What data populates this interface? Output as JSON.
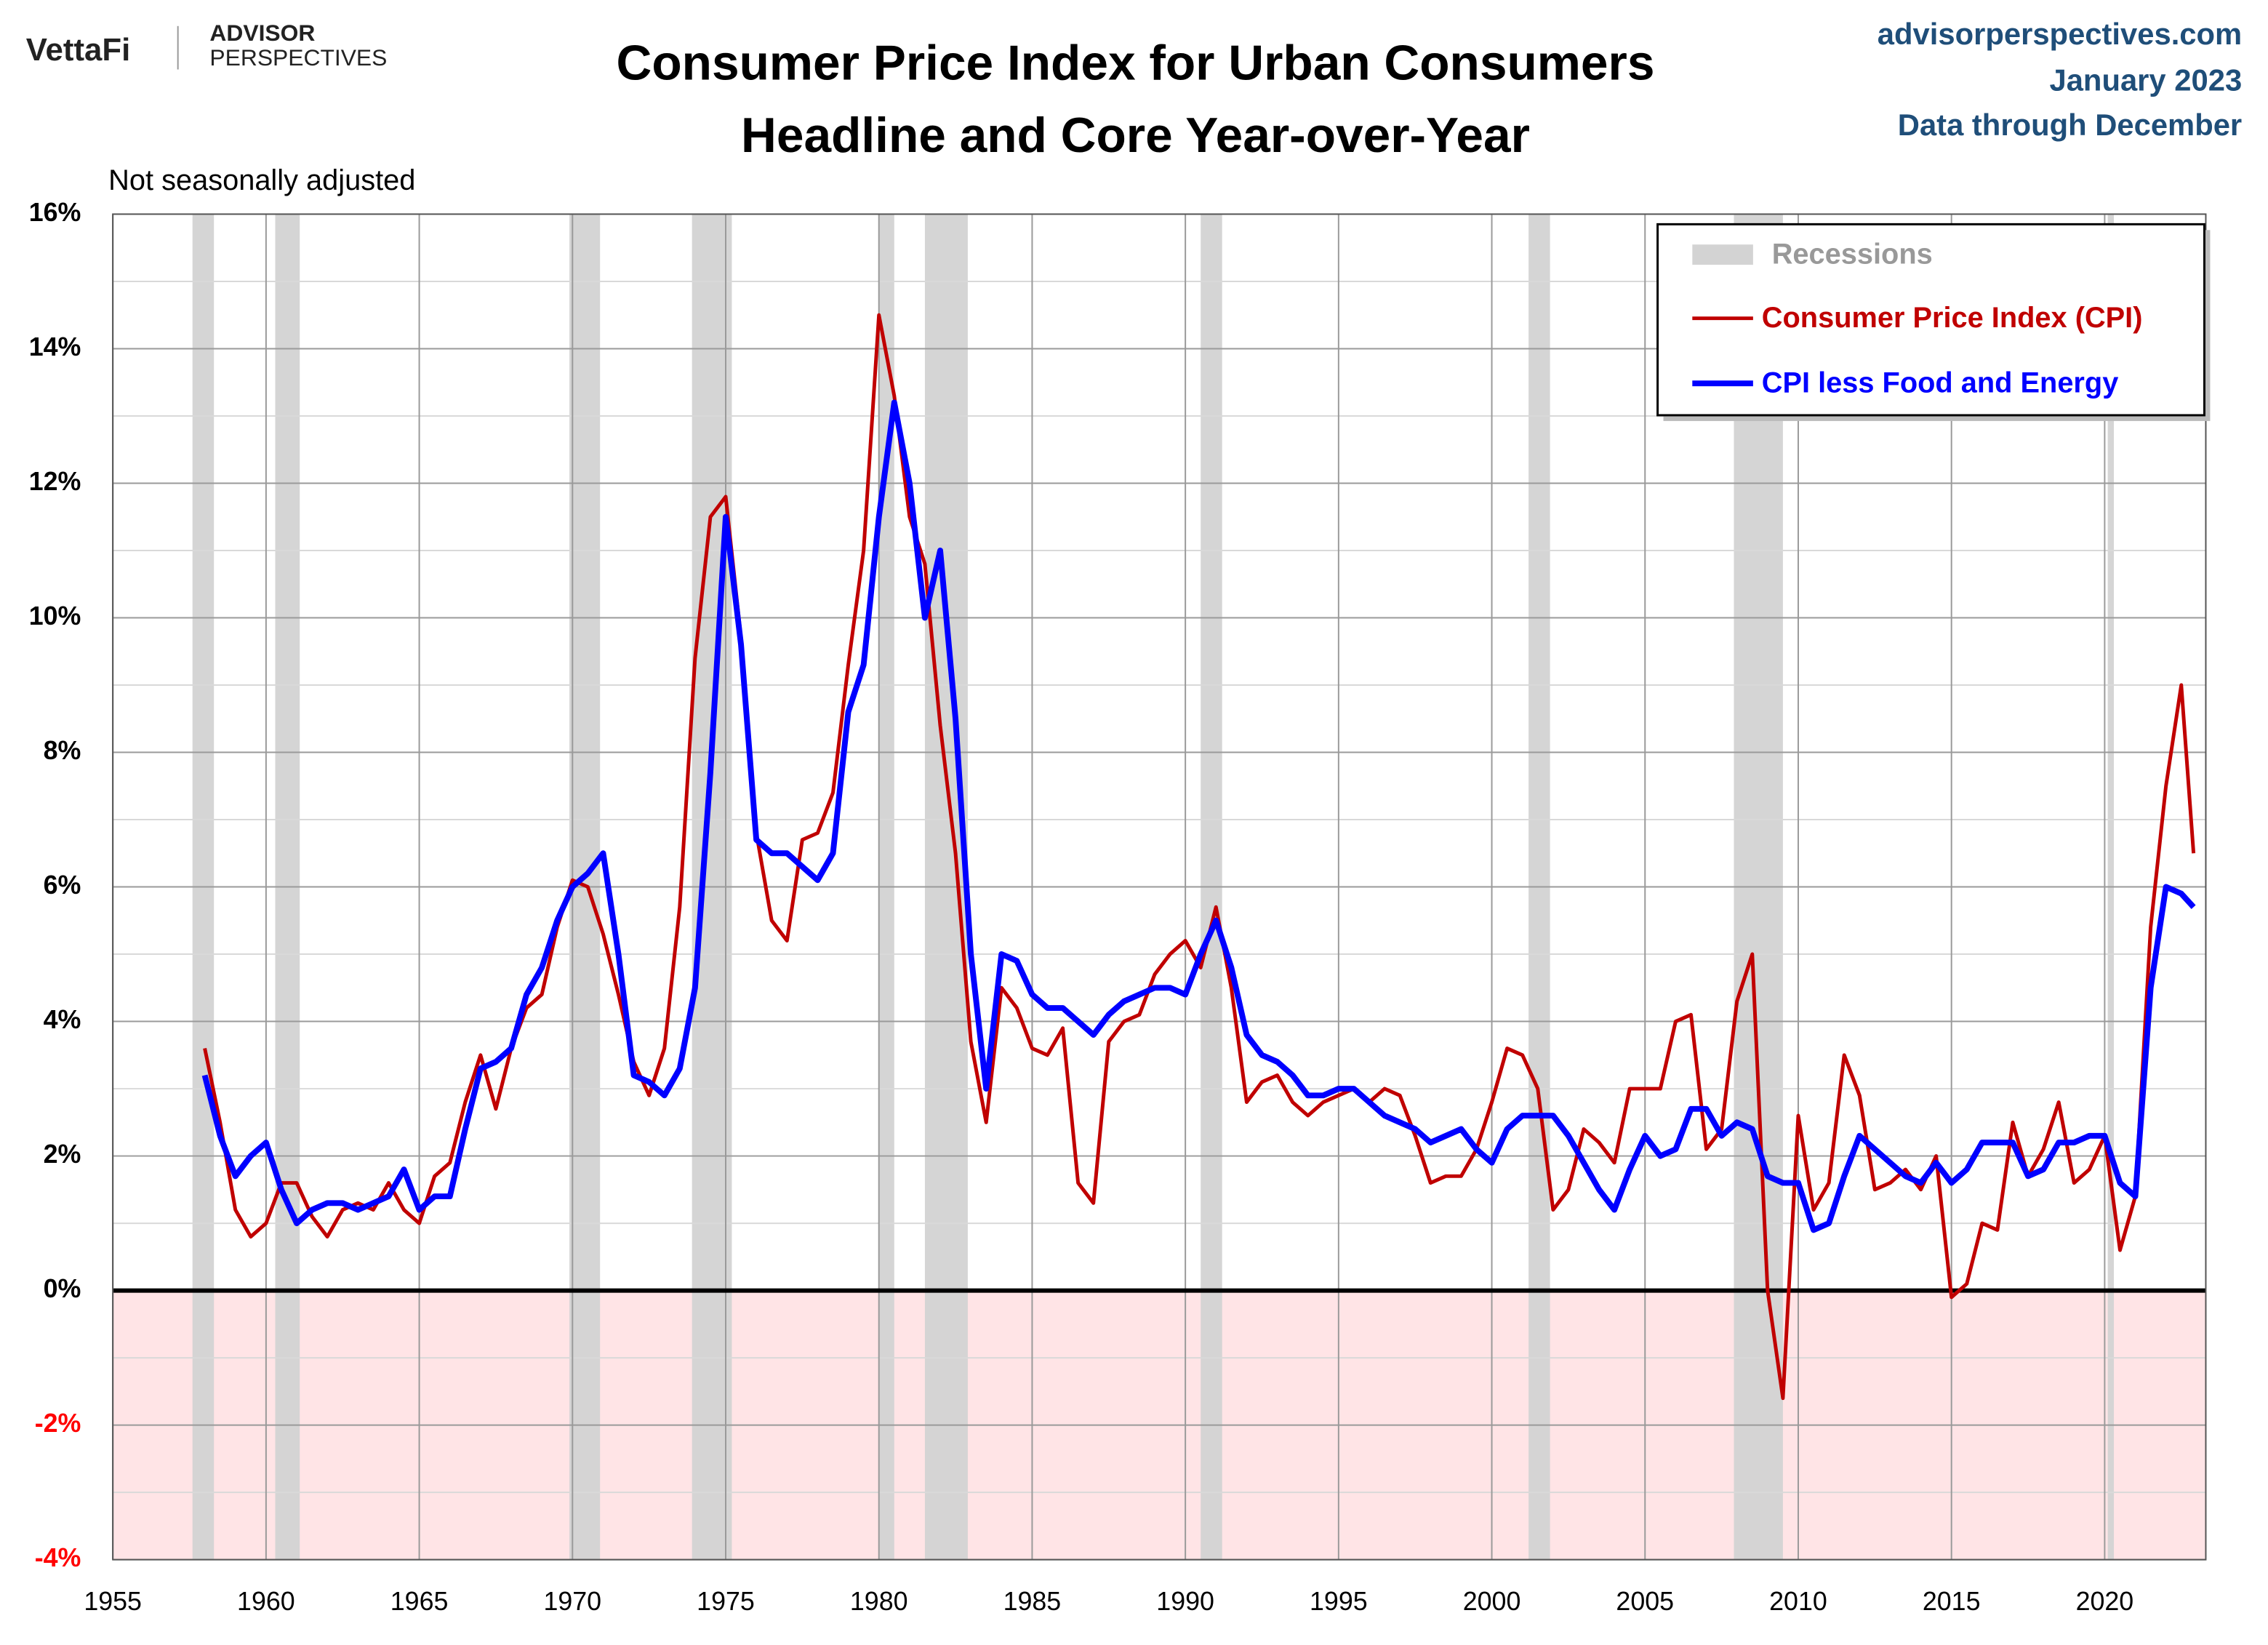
{
  "header": {
    "logo": "VettaFi",
    "brand_top": "ADVISOR",
    "brand_bottom": "PERSPECTIVES",
    "source": "advisorperspectives.com",
    "date": "January 2023",
    "data_note": "Data through December"
  },
  "chart_data": {
    "type": "line",
    "title": [
      "Consumer Price Index for Urban Consumers",
      "Headline and Core Year-over-Year"
    ],
    "subtitle": "Not seasonally adjusted",
    "xlim": [
      1955,
      2023.3
    ],
    "xticks": [
      1955,
      1960,
      1965,
      1970,
      1975,
      1980,
      1985,
      1990,
      1995,
      2000,
      2005,
      2010,
      2015,
      2020
    ],
    "ylim": [
      -4,
      16
    ],
    "yticks": [
      {
        "value": -4,
        "label": "-4%"
      },
      {
        "value": -2,
        "label": "-2%"
      },
      {
        "value": 0,
        "label": "0%"
      },
      {
        "value": 2,
        "label": "2%"
      },
      {
        "value": 4,
        "label": "4%"
      },
      {
        "value": 6,
        "label": "6%"
      },
      {
        "value": 8,
        "label": "8%"
      },
      {
        "value": 10,
        "label": "10%"
      },
      {
        "value": 12,
        "label": "12%"
      },
      {
        "value": 14,
        "label": "14%"
      },
      {
        "value": 16,
        "label": "16%"
      }
    ],
    "y_minor_ticks": [
      -3,
      -1,
      1,
      3,
      5,
      7,
      9,
      11,
      13,
      15
    ],
    "grid": true,
    "legend": "top-right",
    "recession_label": "Recessions",
    "recession_color": "#d3d3d3",
    "recessions": [
      [
        1957.6,
        1958.3
      ],
      [
        1960.3,
        1961.1
      ],
      [
        1969.9,
        1970.9
      ],
      [
        1973.9,
        1975.2
      ],
      [
        1980.0,
        1980.5
      ],
      [
        1981.5,
        1982.9
      ],
      [
        1990.5,
        1991.2
      ],
      [
        2001.2,
        2001.9
      ],
      [
        2007.9,
        2009.5
      ],
      [
        2020.1,
        2020.3
      ]
    ],
    "x": [
      1958,
      1958.5,
      1959,
      1959.5,
      1960,
      1960.5,
      1961,
      1961.5,
      1962,
      1962.5,
      1963,
      1963.5,
      1964,
      1964.5,
      1965,
      1965.5,
      1966,
      1966.5,
      1967,
      1967.5,
      1968,
      1968.5,
      1969,
      1969.5,
      1970,
      1970.5,
      1971,
      1971.5,
      1972,
      1972.5,
      1973,
      1973.5,
      1974,
      1974.5,
      1975,
      1975.5,
      1976,
      1976.5,
      1977,
      1977.5,
      1978,
      1978.5,
      1979,
      1979.5,
      1980,
      1980.5,
      1981,
      1981.5,
      1982,
      1982.5,
      1983,
      1983.5,
      1984,
      1984.5,
      1985,
      1985.5,
      1986,
      1986.5,
      1987,
      1987.5,
      1988,
      1988.5,
      1989,
      1989.5,
      1990,
      1990.5,
      1991,
      1991.5,
      1992,
      1992.5,
      1993,
      1993.5,
      1994,
      1994.5,
      1995,
      1995.5,
      1996,
      1996.5,
      1997,
      1997.5,
      1998,
      1998.5,
      1999,
      1999.5,
      2000,
      2000.5,
      2001,
      2001.5,
      2002,
      2002.5,
      2003,
      2003.5,
      2004,
      2004.5,
      2005,
      2005.5,
      2006,
      2006.5,
      2007,
      2007.5,
      2008,
      2008.5,
      2009,
      2009.5,
      2010,
      2010.5,
      2011,
      2011.5,
      2012,
      2012.5,
      2013,
      2013.5,
      2014,
      2014.5,
      2015,
      2015.5,
      2016,
      2016.5,
      2017,
      2017.5,
      2018,
      2018.5,
      2019,
      2019.5,
      2020,
      2020.5,
      2021,
      2021.5,
      2022,
      2022.5,
      2022.9
    ],
    "series": [
      {
        "name": "Consumer Price Index (CPI)",
        "color": "#c00000",
        "width": 2.5,
        "values": [
          3.6,
          2.5,
          1.2,
          0.8,
          1.0,
          1.6,
          1.6,
          1.1,
          0.8,
          1.2,
          1.3,
          1.2,
          1.6,
          1.2,
          1.0,
          1.7,
          1.9,
          2.8,
          3.5,
          2.7,
          3.6,
          4.2,
          4.4,
          5.4,
          6.1,
          6.0,
          5.3,
          4.4,
          3.4,
          2.9,
          3.6,
          5.7,
          9.4,
          11.5,
          11.8,
          9.7,
          6.8,
          5.5,
          5.2,
          6.7,
          6.8,
          7.4,
          9.3,
          11.0,
          14.5,
          13.3,
          11.5,
          10.8,
          8.4,
          6.5,
          3.7,
          2.5,
          4.5,
          4.2,
          3.6,
          3.5,
          3.9,
          1.6,
          1.3,
          3.7,
          4.0,
          4.1,
          4.7,
          5.0,
          5.2,
          4.8,
          5.7,
          4.5,
          2.8,
          3.1,
          3.2,
          2.8,
          2.6,
          2.8,
          2.9,
          3.0,
          2.8,
          3.0,
          2.9,
          2.3,
          1.6,
          1.7,
          1.7,
          2.1,
          2.8,
          3.6,
          3.5,
          3.0,
          1.2,
          1.5,
          2.4,
          2.2,
          1.9,
          3.0,
          3.0,
          3.0,
          4.0,
          4.1,
          2.1,
          2.4,
          4.3,
          5.0,
          0.0,
          -1.6,
          2.6,
          1.2,
          1.6,
          3.5,
          2.9,
          1.5,
          1.6,
          1.8,
          1.5,
          2.0,
          -0.1,
          0.1,
          1.0,
          0.9,
          2.5,
          1.7,
          2.1,
          2.8,
          1.6,
          1.8,
          2.3,
          0.6,
          1.4,
          5.4,
          7.5,
          9.0,
          6.5
        ]
      },
      {
        "name": "CPI less Food and Energy",
        "color": "#0000ff",
        "width": 4,
        "values": [
          3.2,
          2.3,
          1.7,
          2.0,
          2.2,
          1.5,
          1.0,
          1.2,
          1.3,
          1.3,
          1.2,
          1.3,
          1.4,
          1.8,
          1.2,
          1.4,
          1.4,
          2.4,
          3.3,
          3.4,
          3.6,
          4.4,
          4.8,
          5.5,
          6.0,
          6.2,
          6.5,
          5.0,
          3.2,
          3.1,
          2.9,
          3.3,
          4.5,
          7.7,
          11.5,
          9.6,
          6.7,
          6.5,
          6.5,
          6.3,
          6.1,
          6.5,
          8.6,
          9.3,
          11.5,
          13.2,
          12.0,
          10.0,
          11.0,
          8.5,
          5.0,
          3.0,
          5.0,
          4.9,
          4.4,
          4.2,
          4.2,
          4.0,
          3.8,
          4.1,
          4.3,
          4.4,
          4.5,
          4.5,
          4.4,
          5.0,
          5.5,
          4.8,
          3.8,
          3.5,
          3.4,
          3.2,
          2.9,
          2.9,
          3.0,
          3.0,
          2.8,
          2.6,
          2.5,
          2.4,
          2.2,
          2.3,
          2.4,
          2.1,
          1.9,
          2.4,
          2.6,
          2.6,
          2.6,
          2.3,
          1.9,
          1.5,
          1.2,
          1.8,
          2.3,
          2.0,
          2.1,
          2.7,
          2.7,
          2.3,
          2.5,
          2.4,
          1.7,
          1.6,
          1.6,
          0.9,
          1.0,
          1.7,
          2.3,
          2.1,
          1.9,
          1.7,
          1.6,
          1.9,
          1.6,
          1.8,
          2.2,
          2.2,
          2.2,
          1.7,
          1.8,
          2.2,
          2.2,
          2.3,
          2.3,
          1.6,
          1.4,
          4.5,
          6.0,
          5.9,
          5.7
        ]
      }
    ]
  }
}
